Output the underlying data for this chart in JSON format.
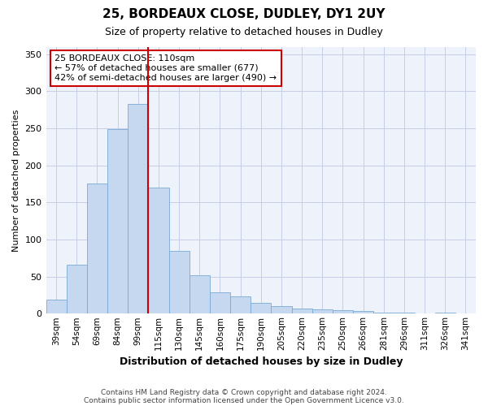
{
  "title": "25, BORDEAUX CLOSE, DUDLEY, DY1 2UY",
  "subtitle": "Size of property relative to detached houses in Dudley",
  "xlabel": "Distribution of detached houses by size in Dudley",
  "ylabel": "Number of detached properties",
  "categories": [
    "39sqm",
    "54sqm",
    "69sqm",
    "84sqm",
    "99sqm",
    "115sqm",
    "130sqm",
    "145sqm",
    "160sqm",
    "175sqm",
    "190sqm",
    "205sqm",
    "220sqm",
    "235sqm",
    "250sqm",
    "266sqm",
    "281sqm",
    "296sqm",
    "311sqm",
    "326sqm",
    "341sqm"
  ],
  "values": [
    19,
    66,
    175,
    249,
    283,
    170,
    85,
    52,
    29,
    23,
    15,
    10,
    7,
    6,
    5,
    4,
    1,
    1,
    0,
    1,
    0
  ],
  "bar_color": "#c5d8f0",
  "bar_edge_color": "#7aaad4",
  "vline_color": "#cc0000",
  "vline_x_index": 5,
  "annotation_text": "25 BORDEAUX CLOSE: 110sqm\n← 57% of detached houses are smaller (677)\n42% of semi-detached houses are larger (490) →",
  "annotation_box_facecolor": "white",
  "annotation_box_edgecolor": "#cc0000",
  "footer1": "Contains HM Land Registry data © Crown copyright and database right 2024.",
  "footer2": "Contains public sector information licensed under the Open Government Licence v3.0.",
  "bg_color": "#eef2fb",
  "grid_color": "#c5cde8",
  "ylim": [
    0,
    360
  ],
  "yticks": [
    0,
    50,
    100,
    150,
    200,
    250,
    300,
    350
  ],
  "figsize": [
    6.0,
    5.0
  ],
  "dpi": 100,
  "title_fontsize": 11,
  "subtitle_fontsize": 9,
  "xlabel_fontsize": 9,
  "ylabel_fontsize": 8,
  "tick_fontsize": 8,
  "xtick_fontsize": 7.5,
  "annotation_fontsize": 8,
  "footer_fontsize": 6.5
}
